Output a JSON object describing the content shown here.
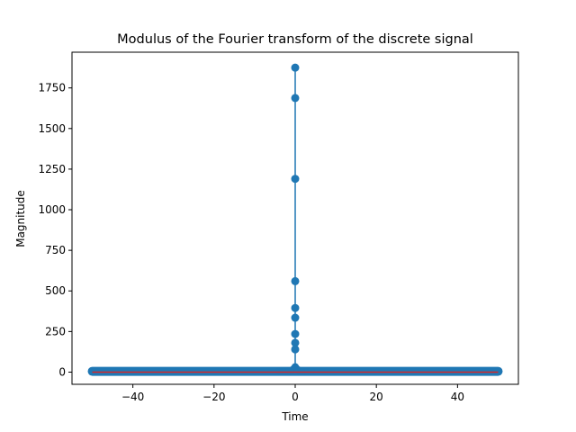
{
  "chart_data": {
    "type": "stem",
    "title": "Modulus of the Fourier transform of the discrete signal",
    "xlabel": "Time",
    "ylabel": "Magnitude",
    "xlim": [
      -55,
      55
    ],
    "ylim": [
      -75,
      1970
    ],
    "xticks": [
      -40,
      -20,
      0,
      20,
      40
    ],
    "yticks": [
      0,
      250,
      500,
      750,
      1000,
      1250,
      1500,
      1750
    ],
    "grid": false,
    "legend": "none",
    "colors": {
      "stem": "#1f77b4",
      "baseline": "#d62728"
    },
    "baseline": 0,
    "peak_points": [
      {
        "x": 0,
        "y": 1875
      },
      {
        "x": 0,
        "y": 1688
      },
      {
        "x": 0,
        "y": 1190
      },
      {
        "x": 0,
        "y": 560
      },
      {
        "x": 0,
        "y": 395
      },
      {
        "x": 0,
        "y": 335
      },
      {
        "x": 0,
        "y": 235
      },
      {
        "x": 0,
        "y": 180
      },
      {
        "x": 0,
        "y": 140
      }
    ],
    "background_points": {
      "x_range": [
        -50,
        50
      ],
      "step": 0.1,
      "y_floor": 5
    }
  }
}
